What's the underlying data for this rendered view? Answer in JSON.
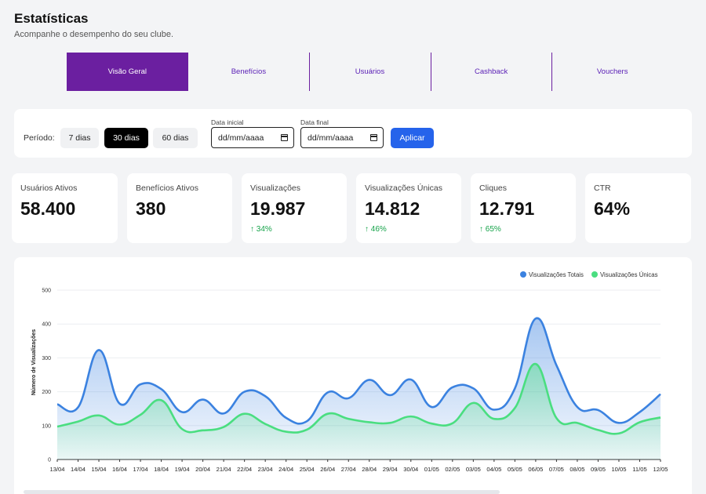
{
  "header": {
    "title": "Estatísticas",
    "subtitle": "Acompanhe o desempenho do seu clube."
  },
  "tabs": [
    {
      "label": "Visão Geral",
      "active": true
    },
    {
      "label": "Benefícios",
      "active": false
    },
    {
      "label": "Usuários",
      "active": false
    },
    {
      "label": "Cashback",
      "active": false
    },
    {
      "label": "Vouchers",
      "active": false
    }
  ],
  "filters": {
    "period_label": "Período:",
    "periods": [
      {
        "label": "7 dias",
        "active": false
      },
      {
        "label": "30 dias",
        "active": true
      },
      {
        "label": "60 dias",
        "active": false
      }
    ],
    "start_label": "Data inicial",
    "start_placeholder": "dd/mm/aaaa",
    "end_label": "Data final",
    "end_placeholder": "dd/mm/aaaa",
    "apply_label": "Aplicar"
  },
  "cards": [
    {
      "label": "Usuários Ativos",
      "value": "58.400",
      "delta": ""
    },
    {
      "label": "Benefícios Ativos",
      "value": "380",
      "delta": ""
    },
    {
      "label": "Visualizações",
      "value": "19.987",
      "delta": "↑ 34%"
    },
    {
      "label": "Visualizações Únicas",
      "value": "14.812",
      "delta": "↑ 46%"
    },
    {
      "label": "Cliques",
      "value": "12.791",
      "delta": "↑ 65%"
    },
    {
      "label": "CTR",
      "value": "64%",
      "delta": ""
    }
  ],
  "colors": {
    "accent": "#6b1fa0",
    "apply": "#2563eb",
    "positive": "#16a34a",
    "series_total": "#3b82e0",
    "series_unique": "#4ade80"
  },
  "chart_data": {
    "type": "area",
    "title": "",
    "xlabel": "",
    "ylabel": "Número de Visualizações",
    "ylim": [
      0,
      500
    ],
    "yticks": [
      0,
      100,
      200,
      300,
      400,
      500
    ],
    "grid": true,
    "legend_position": "top-right",
    "categories": [
      "13/04",
      "14/04",
      "15/04",
      "16/04",
      "17/04",
      "18/04",
      "19/04",
      "20/04",
      "21/04",
      "22/04",
      "23/04",
      "24/04",
      "25/04",
      "26/04",
      "27/04",
      "28/04",
      "29/04",
      "30/04",
      "01/05",
      "02/05",
      "03/05",
      "04/05",
      "05/05",
      "06/05",
      "07/05",
      "08/05",
      "09/05",
      "10/05",
      "11/05",
      "12/05"
    ],
    "series": [
      {
        "name": "Visualizações Totais",
        "values": [
          163,
          154,
          323,
          165,
          222,
          208,
          140,
          177,
          136,
          200,
          187,
          123,
          113,
          198,
          181,
          235,
          190,
          236,
          155,
          213,
          210,
          147,
          210,
          416,
          278,
          155,
          146,
          108,
          140,
          193
        ]
      },
      {
        "name": "Visualizações Únicas",
        "values": [
          97,
          112,
          130,
          103,
          132,
          175,
          90,
          86,
          96,
          135,
          105,
          82,
          88,
          135,
          120,
          110,
          108,
          127,
          106,
          107,
          167,
          120,
          152,
          282,
          122,
          108,
          87,
          77,
          110,
          124
        ]
      }
    ]
  }
}
